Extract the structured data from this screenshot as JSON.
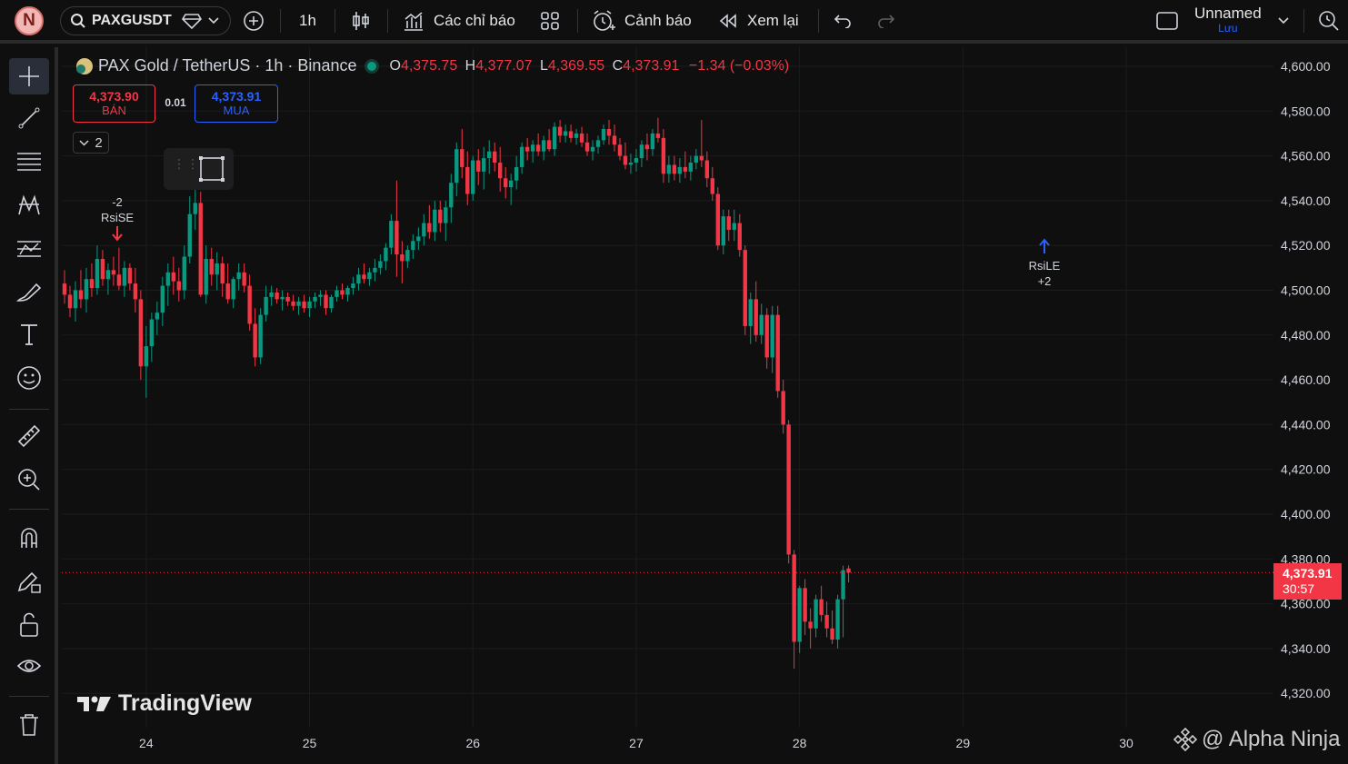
{
  "topbar": {
    "avatar_letter": "N",
    "symbol": "PAXGUSDT",
    "interval": "1h",
    "indicators_label": "Các chỉ báo",
    "alerts_label": "Cảnh báo",
    "replay_label": "Xem lại",
    "layout_name": "Unnamed",
    "layout_status": "Lưu"
  },
  "legend": {
    "title": "PAX Gold / TetherUS · 1h · Binance",
    "o_label": "O",
    "o": "4,375.75",
    "h_label": "H",
    "h": "4,377.07",
    "l_label": "L",
    "l": "4,369.55",
    "c_label": "C",
    "c": "4,373.91",
    "change": "−1.34 (−0.03%)"
  },
  "trade": {
    "sell_price": "4,373.90",
    "sell_label": "BÁN",
    "spread": "0.01",
    "buy_price": "4,373.91",
    "buy_label": "MUA",
    "collapse_count": "2"
  },
  "signals": [
    {
      "top": "-2",
      "bottom": "RsiSE"
    },
    {
      "top": "RsiLE",
      "bottom": "+2"
    }
  ],
  "current_price": {
    "price": "4,373.91",
    "countdown": "30:57"
  },
  "watermark": "TradingView",
  "credit": "@ Alpha Ninja",
  "colors": {
    "up": "#089981",
    "down": "#f23645",
    "buy": "#2962ff",
    "background": "#0f0f0f"
  },
  "chart_data": {
    "type": "candlestick",
    "ylim": [
      4310,
      4605
    ],
    "price_ticks": [
      "4,600.00",
      "4,580.00",
      "4,560.00",
      "4,540.00",
      "4,520.00",
      "4,500.00",
      "4,480.00",
      "4,460.00",
      "4,440.00",
      "4,420.00",
      "4,400.00",
      "4,380.00",
      "4,360.00",
      "4,340.00",
      "4,320.00"
    ],
    "day_labels": [
      "24",
      "25",
      "26",
      "27",
      "28",
      "29",
      "30"
    ],
    "day_index": [
      15,
      45,
      75,
      105,
      135,
      165,
      195
    ],
    "ohlc": [
      [
        4503,
        4509,
        4494,
        4498
      ],
      [
        4498,
        4502,
        4488,
        4492
      ],
      [
        4492,
        4504,
        4486,
        4500
      ],
      [
        4500,
        4509,
        4492,
        4496
      ],
      [
        4496,
        4510,
        4490,
        4505
      ],
      [
        4505,
        4512,
        4497,
        4501
      ],
      [
        4501,
        4520,
        4498,
        4514
      ],
      [
        4514,
        4518,
        4502,
        4505
      ],
      [
        4505,
        4512,
        4498,
        4509
      ],
      [
        4509,
        4515,
        4502,
        4507
      ],
      [
        4507,
        4519,
        4500,
        4502
      ],
      [
        4502,
        4513,
        4497,
        4510
      ],
      [
        4510,
        4512,
        4500,
        4503
      ],
      [
        4503,
        4510,
        4490,
        4496
      ],
      [
        4496,
        4500,
        4460,
        4466
      ],
      [
        4466,
        4484,
        4452,
        4475
      ],
      [
        4475,
        4490,
        4468,
        4487
      ],
      [
        4487,
        4495,
        4480,
        4490
      ],
      [
        4490,
        4506,
        4484,
        4502
      ],
      [
        4502,
        4512,
        4493,
        4508
      ],
      [
        4508,
        4515,
        4498,
        4504
      ],
      [
        4504,
        4510,
        4495,
        4500
      ],
      [
        4500,
        4520,
        4496,
        4515
      ],
      [
        4515,
        4542,
        4512,
        4534
      ],
      [
        4534,
        4545,
        4527,
        4539
      ],
      [
        4539,
        4544,
        4497,
        4498
      ],
      [
        4498,
        4520,
        4494,
        4514
      ],
      [
        4514,
        4519,
        4502,
        4507
      ],
      [
        4507,
        4517,
        4500,
        4512
      ],
      [
        4512,
        4515,
        4497,
        4503
      ],
      [
        4503,
        4512,
        4494,
        4496
      ],
      [
        4496,
        4506,
        4492,
        4505
      ],
      [
        4505,
        4512,
        4500,
        4508
      ],
      [
        4508,
        4512,
        4499,
        4502
      ],
      [
        4502,
        4507,
        4482,
        4485
      ],
      [
        4485,
        4492,
        4466,
        4470
      ],
      [
        4470,
        4492,
        4467,
        4489
      ],
      [
        4489,
        4502,
        4486,
        4497
      ],
      [
        4497,
        4502,
        4493,
        4499
      ],
      [
        4499,
        4501,
        4494,
        4496
      ],
      [
        4496,
        4500,
        4491,
        4497
      ],
      [
        4497,
        4499,
        4493,
        4495
      ],
      [
        4495,
        4498,
        4491,
        4493
      ],
      [
        4493,
        4497,
        4489,
        4495
      ],
      [
        4495,
        4498,
        4490,
        4492
      ],
      [
        4492,
        4497,
        4488,
        4495
      ],
      [
        4495,
        4499,
        4492,
        4497
      ],
      [
        4497,
        4500,
        4493,
        4498
      ],
      [
        4498,
        4500,
        4489,
        4492
      ],
      [
        4492,
        4498,
        4490,
        4497
      ],
      [
        4497,
        4502,
        4495,
        4500
      ],
      [
        4500,
        4503,
        4496,
        4498
      ],
      [
        4498,
        4502,
        4495,
        4501
      ],
      [
        4501,
        4506,
        4498,
        4503
      ],
      [
        4503,
        4510,
        4500,
        4507
      ],
      [
        4507,
        4512,
        4503,
        4505
      ],
      [
        4505,
        4510,
        4502,
        4508
      ],
      [
        4508,
        4514,
        4504,
        4510
      ],
      [
        4510,
        4516,
        4507,
        4513
      ],
      [
        4513,
        4521,
        4509,
        4519
      ],
      [
        4519,
        4534,
        4516,
        4531
      ],
      [
        4531,
        4549,
        4506,
        4516
      ],
      [
        4516,
        4522,
        4503,
        4513
      ],
      [
        4513,
        4520,
        4510,
        4518
      ],
      [
        4518,
        4525,
        4514,
        4522
      ],
      [
        4522,
        4528,
        4518,
        4524
      ],
      [
        4524,
        4534,
        4520,
        4530
      ],
      [
        4530,
        4538,
        4523,
        4526
      ],
      [
        4526,
        4540,
        4522,
        4536
      ],
      [
        4536,
        4540,
        4526,
        4530
      ],
      [
        4530,
        4540,
        4522,
        4537
      ],
      [
        4537,
        4552,
        4530,
        4548
      ],
      [
        4548,
        4566,
        4542,
        4563
      ],
      [
        4563,
        4572,
        4550,
        4555
      ],
      [
        4555,
        4562,
        4538,
        4543
      ],
      [
        4543,
        4560,
        4540,
        4558
      ],
      [
        4558,
        4563,
        4547,
        4553
      ],
      [
        4553,
        4564,
        4545,
        4559
      ],
      [
        4559,
        4567,
        4552,
        4562
      ],
      [
        4562,
        4566,
        4553,
        4557
      ],
      [
        4557,
        4564,
        4544,
        4550
      ],
      [
        4550,
        4555,
        4541,
        4546
      ],
      [
        4546,
        4552,
        4538,
        4549
      ],
      [
        4549,
        4560,
        4545,
        4555
      ],
      [
        4555,
        4566,
        4552,
        4564
      ],
      [
        4564,
        4568,
        4558,
        4562
      ],
      [
        4562,
        4567,
        4557,
        4565
      ],
      [
        4565,
        4570,
        4560,
        4562
      ],
      [
        4562,
        4569,
        4558,
        4567
      ],
      [
        4567,
        4572,
        4562,
        4563
      ],
      [
        4563,
        4575,
        4560,
        4573
      ],
      [
        4573,
        4576,
        4566,
        4569
      ],
      [
        4569,
        4574,
        4566,
        4571
      ],
      [
        4571,
        4574,
        4566,
        4568
      ],
      [
        4568,
        4572,
        4565,
        4570
      ],
      [
        4570,
        4573,
        4564,
        4566
      ],
      [
        4566,
        4570,
        4560,
        4562
      ],
      [
        4562,
        4567,
        4558,
        4564
      ],
      [
        4564,
        4569,
        4561,
        4567
      ],
      [
        4567,
        4574,
        4565,
        4572
      ],
      [
        4572,
        4576,
        4565,
        4569
      ],
      [
        4569,
        4574,
        4562,
        4565
      ],
      [
        4565,
        4568,
        4558,
        4560
      ],
      [
        4560,
        4566,
        4554,
        4556
      ],
      [
        4556,
        4561,
        4552,
        4557
      ],
      [
        4557,
        4563,
        4553,
        4559
      ],
      [
        4559,
        4567,
        4555,
        4565
      ],
      [
        4565,
        4570,
        4558,
        4563
      ],
      [
        4563,
        4572,
        4560,
        4570
      ],
      [
        4570,
        4577,
        4566,
        4568
      ],
      [
        4568,
        4572,
        4548,
        4552
      ],
      [
        4552,
        4560,
        4548,
        4556
      ],
      [
        4556,
        4560,
        4549,
        4552
      ],
      [
        4552,
        4559,
        4548,
        4555
      ],
      [
        4555,
        4562,
        4550,
        4553
      ],
      [
        4553,
        4560,
        4549,
        4557
      ],
      [
        4557,
        4563,
        4554,
        4560
      ],
      [
        4560,
        4576,
        4555,
        4558
      ],
      [
        4558,
        4562,
        4546,
        4550
      ],
      [
        4550,
        4555,
        4540,
        4543
      ],
      [
        4543,
        4546,
        4518,
        4520
      ],
      [
        4520,
        4536,
        4516,
        4533
      ],
      [
        4533,
        4536,
        4522,
        4527
      ],
      [
        4527,
        4536,
        4522,
        4530
      ],
      [
        4530,
        4534,
        4515,
        4518
      ],
      [
        4518,
        4520,
        4480,
        4484
      ],
      [
        4484,
        4499,
        4476,
        4496
      ],
      [
        4496,
        4504,
        4477,
        4480
      ],
      [
        4480,
        4494,
        4476,
        4489
      ],
      [
        4489,
        4492,
        4465,
        4470
      ],
      [
        4470,
        4493,
        4463,
        4489
      ],
      [
        4489,
        4493,
        4452,
        4455
      ],
      [
        4455,
        4460,
        4436,
        4440
      ],
      [
        4440,
        4442,
        4378,
        4382
      ],
      [
        4382,
        4384,
        4331,
        4343
      ],
      [
        4343,
        4368,
        4338,
        4367
      ],
      [
        4367,
        4371,
        4346,
        4352
      ],
      [
        4352,
        4358,
        4340,
        4349
      ],
      [
        4349,
        4364,
        4345,
        4362
      ],
      [
        4362,
        4368,
        4352,
        4355
      ],
      [
        4355,
        4361,
        4345,
        4349
      ],
      [
        4349,
        4357,
        4342,
        4344
      ],
      [
        4344,
        4364,
        4340,
        4362
      ],
      [
        4362,
        4377,
        4345,
        4375
      ],
      [
        4375.75,
        4377.07,
        4369.55,
        4373.91
      ]
    ]
  }
}
